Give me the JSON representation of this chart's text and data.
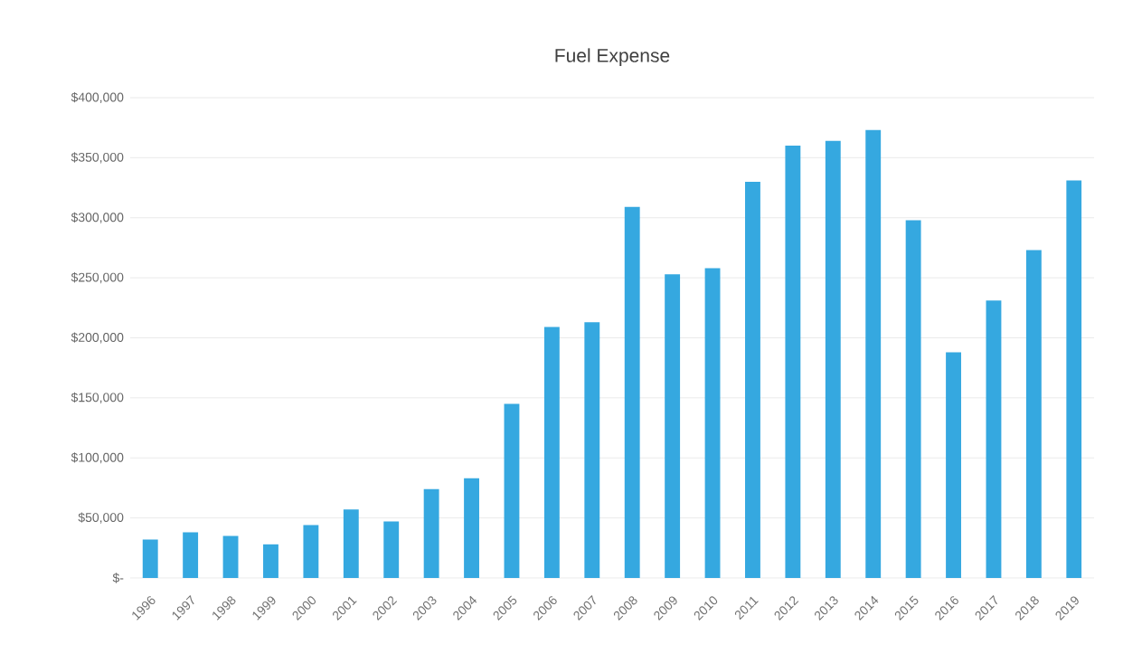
{
  "chart_data": {
    "type": "bar",
    "title": "Fuel Expense",
    "categories": [
      "1996",
      "1997",
      "1998",
      "1999",
      "2000",
      "2001",
      "2002",
      "2003",
      "2004",
      "2005",
      "2006",
      "2007",
      "2008",
      "2009",
      "2010",
      "2011",
      "2012",
      "2013",
      "2014",
      "2015",
      "2016",
      "2017",
      "2018",
      "2019"
    ],
    "values": [
      32000,
      38000,
      35000,
      28000,
      44000,
      57000,
      47000,
      74000,
      83000,
      145000,
      209000,
      213000,
      309000,
      253000,
      258000,
      330000,
      360000,
      364000,
      373000,
      298000,
      188000,
      231000,
      273000,
      331000
    ],
    "color": "#35a8e0",
    "ylim": [
      0,
      400000
    ],
    "yticks": [
      {
        "value": 0,
        "label": "$-"
      },
      {
        "value": 50000,
        "label": "$50,000"
      },
      {
        "value": 100000,
        "label": "$100,000"
      },
      {
        "value": 150000,
        "label": "$150,000"
      },
      {
        "value": 200000,
        "label": "$200,000"
      },
      {
        "value": 250000,
        "label": "$250,000"
      },
      {
        "value": 300000,
        "label": "$300,000"
      },
      {
        "value": 350000,
        "label": "$350,000"
      },
      {
        "value": 400000,
        "label": "$400,000"
      }
    ],
    "grid": "y"
  }
}
